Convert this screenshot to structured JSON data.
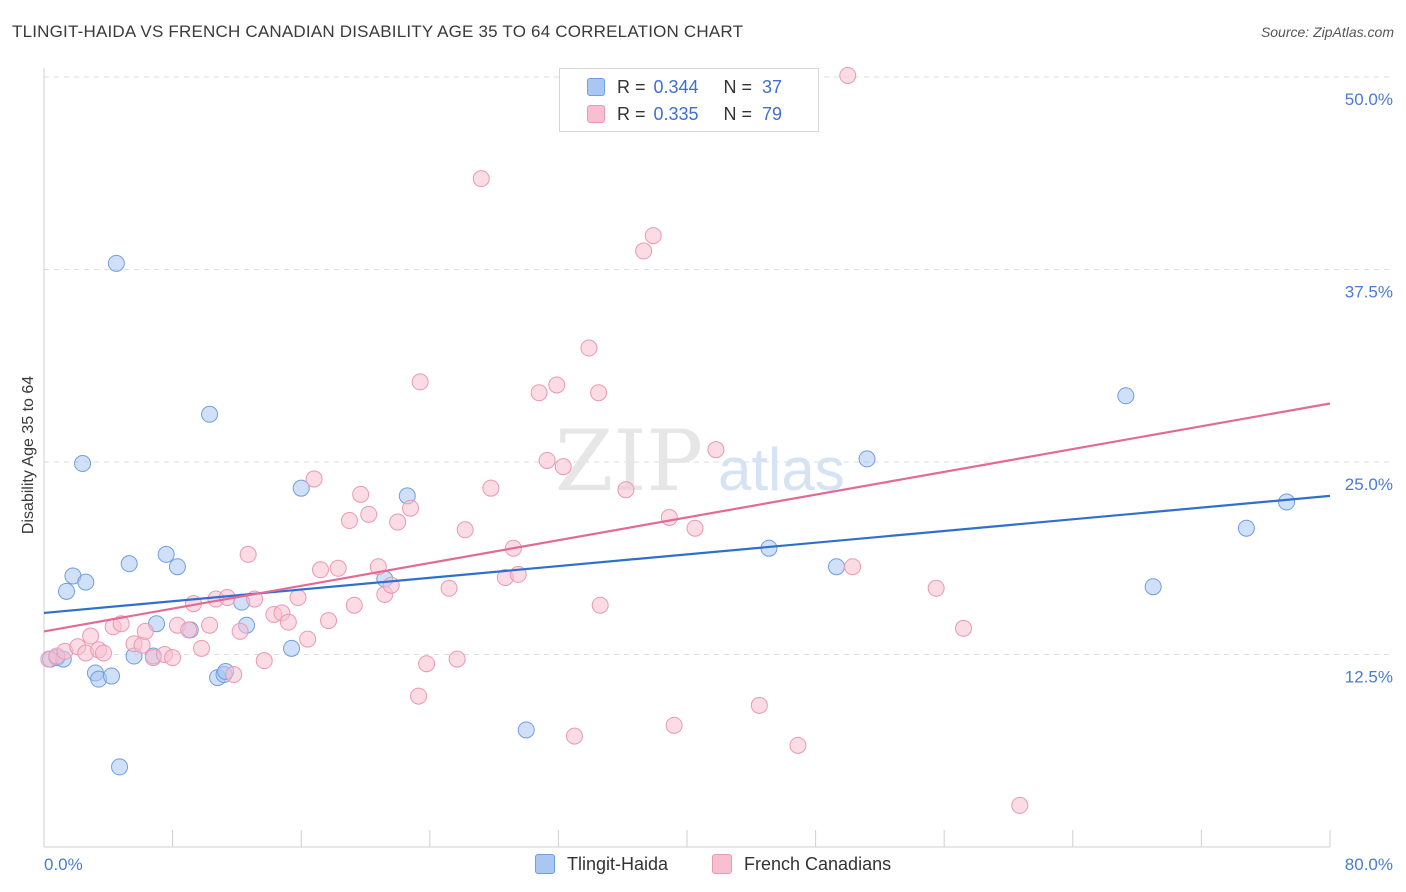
{
  "title": "TLINGIT-HAIDA VS FRENCH CANADIAN DISABILITY AGE 35 TO 64 CORRELATION CHART",
  "source": "Source: ZipAtlas.com",
  "watermark": {
    "zip": "ZIP",
    "atlas": "atlas"
  },
  "legend": {
    "rows": [
      {
        "r_label": "R =",
        "r_value": "0.344",
        "n_label": "N =",
        "n_value": "37"
      },
      {
        "r_label": "R =",
        "r_value": "0.335",
        "n_label": "N =",
        "n_value": "79"
      }
    ]
  },
  "colors": {
    "blue_fill": "#a9c7f2",
    "blue_stroke": "#6f9ee3",
    "blue_line": "#2f6fcf",
    "pink_fill": "#f7bfd0",
    "pink_stroke": "#eb98b4",
    "pink_line": "#e46a96",
    "grid": "#dedede",
    "tick_label": "#4a7bd4"
  },
  "chart_data": {
    "type": "scatter",
    "title": "TLINGIT-HAIDA VS FRENCH CANADIAN DISABILITY AGE 35 TO 64 CORRELATION CHART",
    "xlabel": "",
    "ylabel": "Disability Age 35 to 64",
    "xlim": [
      0,
      80
    ],
    "ylim": [
      0,
      50
    ],
    "x_tick_labels": [
      "0.0%",
      "80.0%"
    ],
    "y_ticks": [
      12.5,
      25.0,
      37.5,
      50.0
    ],
    "y_tick_labels": [
      "12.5%",
      "25.0%",
      "37.5%",
      "50.0%"
    ],
    "grid": true,
    "legend_position": "top-center",
    "series": [
      {
        "name": "Tlingit-Haida",
        "color": "blue",
        "r": 0.344,
        "n": 37,
        "trend": {
          "x": [
            0,
            80
          ],
          "y": [
            15.2,
            22.8
          ]
        },
        "points": [
          [
            0.4,
            12.2
          ],
          [
            0.8,
            12.3
          ],
          [
            1.2,
            12.2
          ],
          [
            1.4,
            16.6
          ],
          [
            1.8,
            17.6
          ],
          [
            2.4,
            24.9
          ],
          [
            2.6,
            17.2
          ],
          [
            3.2,
            11.3
          ],
          [
            3.4,
            10.9
          ],
          [
            4.2,
            11.1
          ],
          [
            4.5,
            37.9
          ],
          [
            4.7,
            5.2
          ],
          [
            5.3,
            18.4
          ],
          [
            5.6,
            12.4
          ],
          [
            6.8,
            12.4
          ],
          [
            7.0,
            14.5
          ],
          [
            7.6,
            19.0
          ],
          [
            8.3,
            18.2
          ],
          [
            9.1,
            14.1
          ],
          [
            10.3,
            28.1
          ],
          [
            10.8,
            11.0
          ],
          [
            11.2,
            11.2
          ],
          [
            11.3,
            11.4
          ],
          [
            12.3,
            15.9
          ],
          [
            12.6,
            14.4
          ],
          [
            15.4,
            12.9
          ],
          [
            16.0,
            23.3
          ],
          [
            21.2,
            17.4
          ],
          [
            22.6,
            22.8
          ],
          [
            30.0,
            7.6
          ],
          [
            45.1,
            19.4
          ],
          [
            49.3,
            18.2
          ],
          [
            51.2,
            25.2
          ],
          [
            67.3,
            29.3
          ],
          [
            69.0,
            16.9
          ],
          [
            74.8,
            20.7
          ],
          [
            77.3,
            22.4
          ]
        ]
      },
      {
        "name": "French Canadians",
        "color": "pink",
        "r": 0.335,
        "n": 79,
        "trend": {
          "x": [
            0,
            80
          ],
          "y": [
            14.0,
            28.8
          ]
        },
        "points": [
          [
            0.3,
            12.2
          ],
          [
            0.8,
            12.4
          ],
          [
            1.3,
            12.7
          ],
          [
            2.1,
            13.0
          ],
          [
            2.6,
            12.6
          ],
          [
            2.9,
            13.7
          ],
          [
            3.4,
            12.8
          ],
          [
            3.7,
            12.6
          ],
          [
            4.3,
            14.3
          ],
          [
            4.8,
            14.5
          ],
          [
            5.6,
            13.2
          ],
          [
            6.1,
            13.1
          ],
          [
            6.3,
            14.0
          ],
          [
            6.8,
            12.3
          ],
          [
            7.5,
            12.5
          ],
          [
            8.0,
            12.3
          ],
          [
            8.3,
            14.4
          ],
          [
            9.0,
            14.1
          ],
          [
            9.3,
            15.8
          ],
          [
            9.8,
            12.9
          ],
          [
            10.3,
            14.4
          ],
          [
            10.7,
            16.1
          ],
          [
            11.4,
            16.2
          ],
          [
            11.8,
            11.2
          ],
          [
            12.2,
            14.0
          ],
          [
            12.7,
            19.0
          ],
          [
            13.1,
            16.1
          ],
          [
            13.7,
            12.1
          ],
          [
            14.3,
            15.1
          ],
          [
            14.8,
            15.2
          ],
          [
            15.2,
            14.6
          ],
          [
            15.8,
            16.2
          ],
          [
            16.4,
            13.5
          ],
          [
            16.8,
            23.9
          ],
          [
            17.2,
            18.0
          ],
          [
            17.7,
            14.7
          ],
          [
            18.3,
            18.1
          ],
          [
            19.0,
            21.2
          ],
          [
            19.3,
            15.7
          ],
          [
            19.7,
            22.9
          ],
          [
            20.2,
            21.6
          ],
          [
            20.8,
            18.2
          ],
          [
            21.2,
            16.4
          ],
          [
            21.6,
            17.0
          ],
          [
            22.0,
            21.1
          ],
          [
            22.8,
            22.0
          ],
          [
            23.4,
            30.2
          ],
          [
            23.8,
            11.9
          ],
          [
            23.3,
            9.8
          ],
          [
            25.2,
            16.8
          ],
          [
            25.7,
            12.2
          ],
          [
            26.2,
            20.6
          ],
          [
            27.2,
            43.4
          ],
          [
            27.8,
            23.3
          ],
          [
            28.7,
            17.5
          ],
          [
            29.2,
            19.4
          ],
          [
            29.5,
            17.7
          ],
          [
            30.8,
            29.5
          ],
          [
            31.3,
            25.1
          ],
          [
            31.9,
            30.0
          ],
          [
            32.3,
            24.7
          ],
          [
            33.0,
            7.2
          ],
          [
            33.9,
            32.4
          ],
          [
            34.5,
            29.5
          ],
          [
            34.6,
            15.7
          ],
          [
            36.2,
            23.2
          ],
          [
            37.3,
            38.7
          ],
          [
            37.9,
            39.7
          ],
          [
            38.9,
            21.4
          ],
          [
            39.2,
            7.9
          ],
          [
            40.5,
            20.7
          ],
          [
            41.8,
            25.8
          ],
          [
            44.5,
            9.2
          ],
          [
            46.9,
            6.6
          ],
          [
            50.0,
            50.1
          ],
          [
            50.3,
            18.2
          ],
          [
            55.5,
            16.8
          ],
          [
            57.2,
            14.2
          ],
          [
            60.7,
            2.7
          ]
        ]
      }
    ]
  },
  "bottom_legend": {
    "series1": "Tlingit-Haida",
    "series2": "French Canadians"
  }
}
